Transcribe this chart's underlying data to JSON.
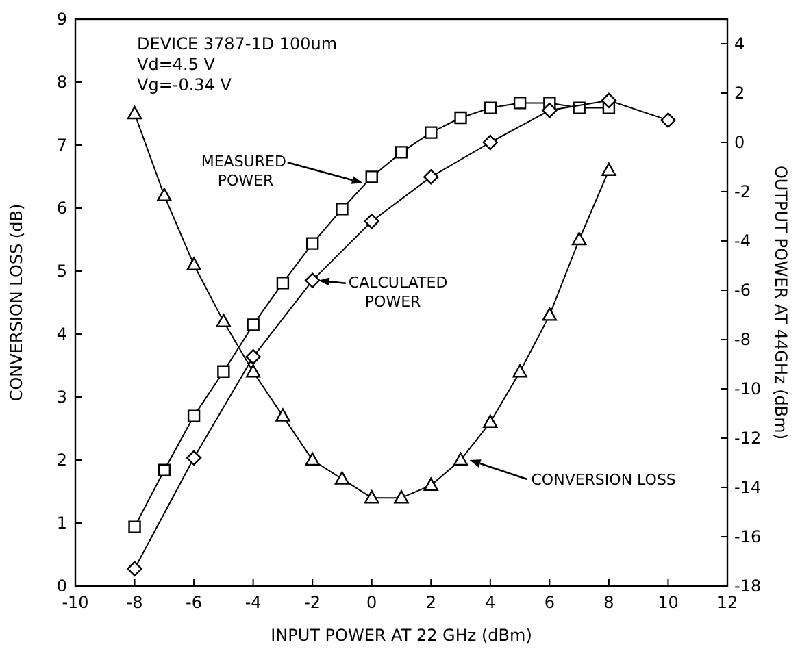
{
  "chart_data": {
    "type": "line",
    "xlabel": "INPUT POWER AT 22 GHz (dBm)",
    "ylabel": "CONVERSION LOSS (dB)",
    "y2label": "OUTPUT POWER AT 44GHz (dBm)",
    "xlim": [
      -10,
      12
    ],
    "xticks": [
      -10,
      -8,
      -6,
      -4,
      -2,
      0,
      2,
      4,
      6,
      8,
      10,
      12
    ],
    "ylim": [
      0,
      9
    ],
    "yticks": [
      0,
      1,
      2,
      3,
      4,
      5,
      6,
      7,
      8,
      9
    ],
    "y2lim": [
      -18,
      5
    ],
    "y2ticks": [
      -18,
      -16,
      -14,
      -12,
      -10,
      -8,
      -6,
      -4,
      -2,
      0,
      2,
      4
    ],
    "grid": false,
    "line_style": "solid",
    "series": [
      {
        "color": "#000000",
        "marker": "triangle",
        "x": [
          -8,
          -7,
          -6,
          -5,
          -4,
          -3,
          -2,
          -1,
          0,
          1,
          2,
          3,
          4,
          5,
          6,
          7,
          8
        ],
        "values": [
          7.5,
          6.2,
          5.1,
          4.2,
          3.4,
          2.7,
          2.0,
          1.7,
          1.4,
          1.4,
          1.6,
          2.0,
          2.6,
          3.4,
          4.3,
          5.5,
          6.6
        ]
      },
      {
        "color": "#000000",
        "marker": "square",
        "axis": "y2",
        "x": [
          -8,
          -7,
          -6,
          -5,
          -4,
          -3,
          -2,
          -1,
          0,
          1,
          2,
          3,
          4,
          5,
          6,
          7,
          8
        ],
        "values": [
          -15.6,
          -13.3,
          -11.1,
          -9.3,
          -7.4,
          -5.7,
          -4.1,
          -2.7,
          -1.4,
          -0.4,
          0.4,
          1.0,
          1.4,
          1.6,
          1.6,
          1.4,
          1.4
        ]
      },
      {
        "color": "#000000",
        "marker": "diamond",
        "axis": "y2",
        "x": [
          -8,
          -6,
          -4,
          -2,
          0,
          2,
          4,
          6,
          8,
          10
        ],
        "values": [
          -17.3,
          -12.8,
          -8.7,
          -5.6,
          -3.2,
          -1.4,
          0.0,
          1.3,
          1.7,
          0.9
        ]
      }
    ],
    "annotations": [
      "DEVICE 3787-1D 100um",
      "Vd=4.5 V",
      "Vg=-0.34 V",
      {
        "text": "MEASURED\nPOWER",
        "x": -0.3,
        "y": 6.4
      },
      {
        "text": "CALCULATED\nPOWER",
        "x": -1.8,
        "y": 4.85
      },
      {
        "text": "CONVERSION LOSS",
        "x": 3.3,
        "y": 2.0
      }
    ]
  }
}
